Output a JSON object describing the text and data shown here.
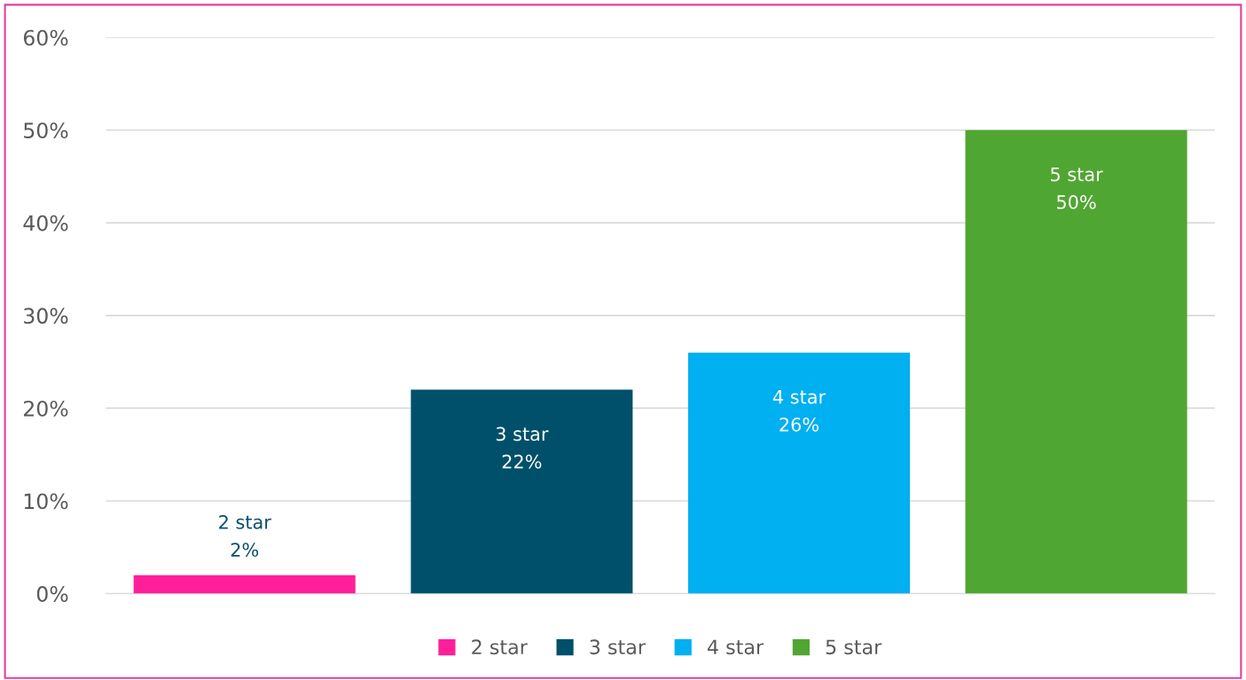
{
  "chart_data": {
    "type": "bar",
    "categories": [
      null,
      null,
      null,
      null
    ],
    "series": [
      {
        "name": "2 star",
        "color": "#ff1f9a",
        "values": [
          2,
          null,
          null,
          null
        ],
        "value_labels": [
          "2 star\n2%",
          null,
          null,
          null
        ]
      },
      {
        "name": "3 star",
        "color": "#00506b",
        "values": [
          null,
          22,
          null,
          null
        ],
        "value_labels": [
          null,
          "3 star\n22%",
          null,
          null
        ]
      },
      {
        "name": "4 star",
        "color": "#00b0f0",
        "values": [
          null,
          null,
          26,
          null
        ],
        "value_labels": [
          null,
          null,
          "4 star\n26%",
          null
        ]
      },
      {
        "name": "5 star",
        "color": "#50a632",
        "values": [
          null,
          null,
          null,
          50
        ],
        "value_labels": [
          null,
          null,
          null,
          "5 star\n50%"
        ]
      }
    ],
    "ylim": [
      0,
      60
    ],
    "yticks": [
      {
        "value": 0,
        "label": "0%"
      },
      {
        "value": 10,
        "label": "10%"
      },
      {
        "value": 20,
        "label": "20%"
      },
      {
        "value": 30,
        "label": "30%"
      },
      {
        "value": 40,
        "label": "40%"
      },
      {
        "value": 50,
        "label": "50%"
      },
      {
        "value": 60,
        "label": "60%"
      }
    ],
    "grid": "y",
    "legend": "bottom"
  }
}
